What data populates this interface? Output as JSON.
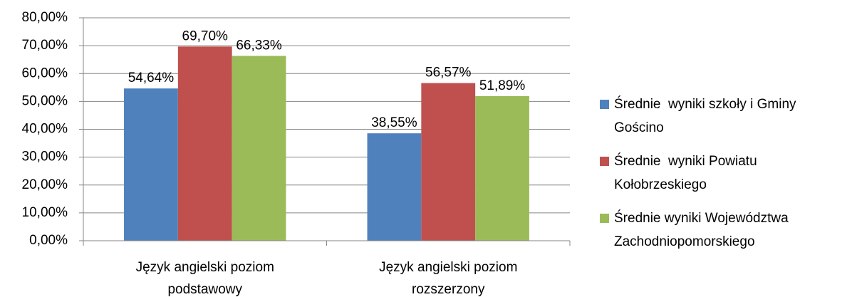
{
  "chart_data": {
    "type": "bar",
    "categories": [
      "Język angielski poziom podstawowy",
      "Język angielski poziom rozszerzony"
    ],
    "series": [
      {
        "name": "Średnie  wyniki szkoły i Gminy Gościno",
        "color": "#4f81bd",
        "values": [
          54.64,
          38.55
        ],
        "value_labels": [
          "54,64%",
          "38,55%"
        ]
      },
      {
        "name": "Średnie  wyniki Powiatu Kołobrzeskiego",
        "color": "#c0504d",
        "values": [
          69.7,
          56.57
        ],
        "value_labels": [
          "69,70%",
          "56,57%"
        ]
      },
      {
        "name": "Średnie wyniki Województwa Zachodniopomorskiego",
        "color": "#9bbb59",
        "values": [
          66.33,
          51.89
        ],
        "value_labels": [
          "66,33%",
          "51,89%"
        ]
      }
    ],
    "ylim": [
      0,
      80
    ],
    "yticks": [
      {
        "value": 0,
        "label": "0,00%"
      },
      {
        "value": 10,
        "label": "10,00%"
      },
      {
        "value": 20,
        "label": "20,00%"
      },
      {
        "value": 30,
        "label": "30,00%"
      },
      {
        "value": 40,
        "label": "40,00%"
      },
      {
        "value": 50,
        "label": "50,00%"
      },
      {
        "value": 60,
        "label": "60,00%"
      },
      {
        "value": 70,
        "label": "70,00%"
      },
      {
        "value": 80,
        "label": "80,00%"
      }
    ],
    "grid": true,
    "legend": "right"
  }
}
